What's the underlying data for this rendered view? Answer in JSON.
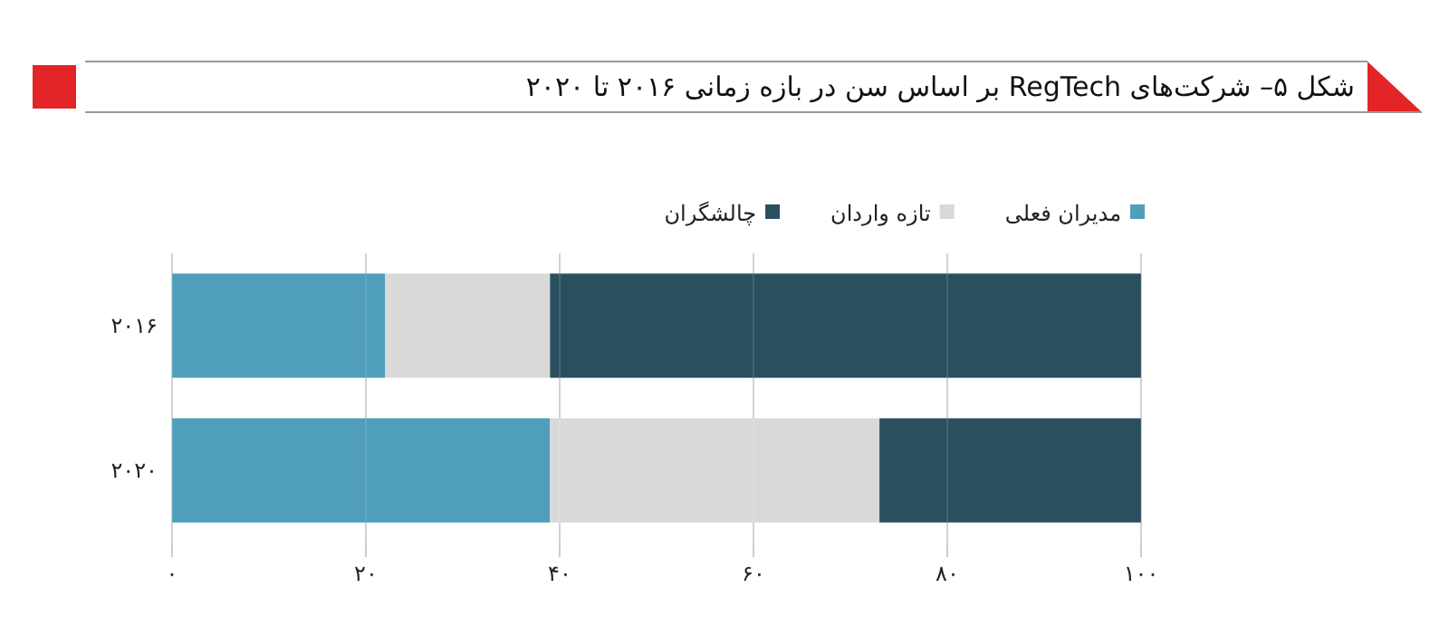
{
  "chart_data": {
    "type": "bar",
    "orientation": "horizontal",
    "stacked": true,
    "title": "شکل ۵– شرکت‌های RegTech بر اساس سن در بازه زمانی ۲۰۱۶ تا ۲۰۲۰",
    "categories": [
      "۲۰۱۶",
      "۲۰۲۰"
    ],
    "series": [
      {
        "name": "مدیران فعلی",
        "color": "#4f9ebb",
        "values": [
          22,
          39
        ]
      },
      {
        "name": "تازه واردان",
        "color": "#d9d9d9",
        "values": [
          17,
          34
        ]
      },
      {
        "name": "چالشگران",
        "color": "#2a5060",
        "values": [
          61,
          27
        ]
      }
    ],
    "xlim": [
      0,
      100
    ],
    "xticks": [
      {
        "value": 0,
        "label": "۰"
      },
      {
        "value": 20,
        "label": "۲۰"
      },
      {
        "value": 40,
        "label": "۴۰"
      },
      {
        "value": 60,
        "label": "۶۰"
      },
      {
        "value": 80,
        "label": "۸۰"
      },
      {
        "value": 100,
        "label": "۱۰۰"
      }
    ],
    "grid": "x",
    "legend": "top"
  }
}
